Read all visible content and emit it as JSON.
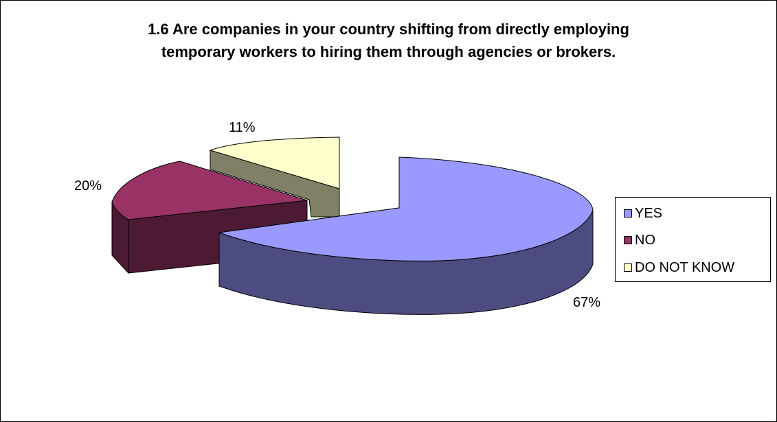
{
  "chart_data": {
    "type": "pie",
    "title_lines": [
      "1.6 Are companies in your country shifting from directly employing",
      "temporary workers to hiring them through agencies or brokers."
    ],
    "slices": [
      {
        "label": "YES",
        "value": 67,
        "pct_label": "67%",
        "color": "#9999FF",
        "side_color": "#4C4C80"
      },
      {
        "label": "NO",
        "value": 20,
        "pct_label": "20%",
        "color": "#993366",
        "side_color": "#4D1A33"
      },
      {
        "label": "DO NOT KNOW",
        "value": 11,
        "pct_label": "11%",
        "color": "#FFFFCC",
        "side_color": "#808066"
      }
    ],
    "style": "3d-exploded",
    "legend_position": "right"
  }
}
